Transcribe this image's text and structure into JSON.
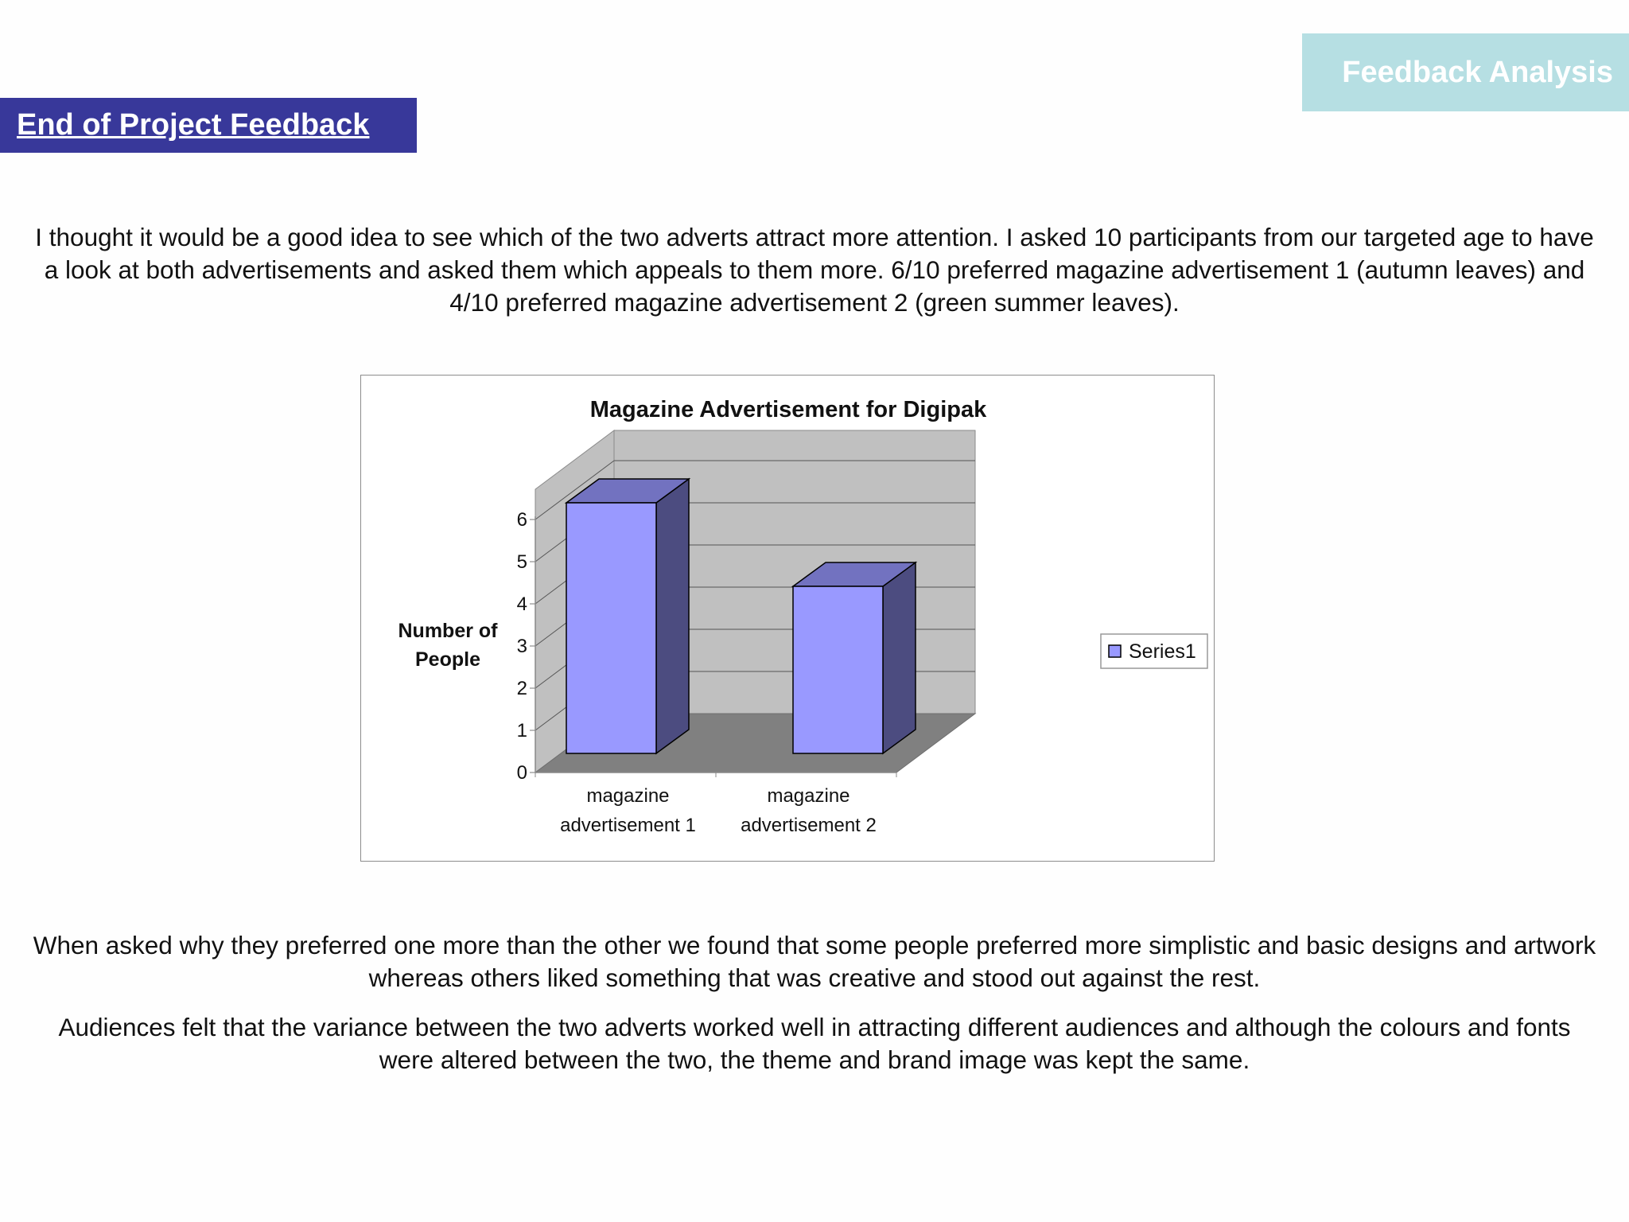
{
  "header": {
    "corner_label": "Feedback Analysis",
    "title": "End of Project Feedback"
  },
  "paragraphs": {
    "intro": "I thought it would be a good idea to see which of the two adverts attract more attention. I asked 10 participants from our targeted age to have a look at both advertisements and asked them which appeals to them more. 6/10 preferred magazine advertisement 1 (autumn leaves) and 4/10 preferred magazine advertisement 2 (green summer leaves).",
    "reasons": "When asked why they preferred one more than the other we found that some people preferred more simplistic and basic designs and artwork whereas others liked something that was creative and stood out against the rest.",
    "conclusion": "Audiences felt that the variance between the two adverts worked well in attracting different audiences and although the colours and fonts were altered between the two, the theme and brand image was kept the same."
  },
  "colors": {
    "title_bar": "#38389a",
    "corner_tab": "#b6dfe3",
    "bar_front": "#9999ff",
    "bar_top": "#7272c0",
    "bar_side": "#4c4c80",
    "chart_back_wall": "#c0c0c0",
    "chart_floor": "#808080"
  },
  "chart_data": {
    "type": "bar",
    "style": "3d-column",
    "title": "Magazine Advertisement for Digipak",
    "ylabel": "Number of People",
    "xlabel": "",
    "categories": [
      "magazine advertisement 1",
      "magazine advertisement 2"
    ],
    "category_lines": [
      [
        "magazine",
        "advertisement 1"
      ],
      [
        "magazine",
        "advertisement 2"
      ]
    ],
    "series": [
      {
        "name": "Series1",
        "values": [
          6,
          4
        ]
      }
    ],
    "ylim": [
      0,
      6
    ],
    "yticks": [
      "0",
      "1",
      "2",
      "3",
      "4",
      "5",
      "6"
    ],
    "grid": true,
    "legend": "right"
  }
}
